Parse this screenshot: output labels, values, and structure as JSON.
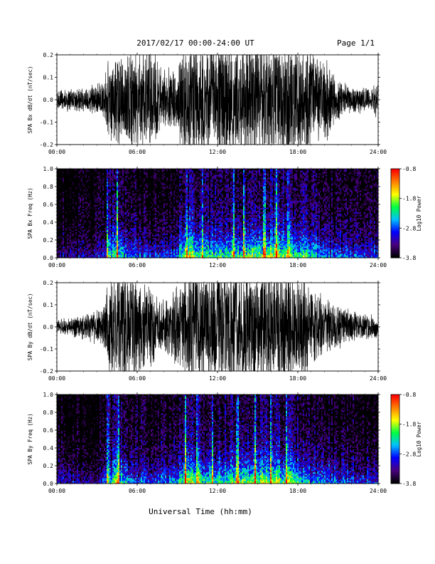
{
  "header": {
    "date_range": "2017/02/17  00:00-24:00 UT",
    "page": "Page 1/1"
  },
  "footer": {
    "xlabel": "Universal Time (hh:mm)"
  },
  "chart_data": [
    {
      "type": "line",
      "ylabel": "SPA Bx dB/dt (nT/sec)",
      "xlim": [
        0,
        24
      ],
      "ylim": [
        -0.2,
        0.2
      ],
      "x_ticks": [
        "00:00",
        "06:00",
        "12:00",
        "18:00",
        "24:00"
      ],
      "y_ticks": [
        "-0.2",
        "-0.1",
        "0.0",
        "0.1",
        "0.2"
      ],
      "envelope": {
        "hours": [
          0,
          1,
          2,
          3,
          3.5,
          3.9,
          4.2,
          4.8,
          5.2,
          6,
          7,
          8,
          9,
          9.3,
          9.5,
          10,
          11,
          12,
          13,
          14,
          15,
          16,
          17,
          18,
          18.5,
          19,
          19.5,
          20,
          20.5,
          21,
          22,
          23,
          23.6,
          24
        ],
        "amplitude": [
          0.05,
          0.06,
          0.06,
          0.08,
          0.09,
          0.22,
          0.22,
          0.25,
          0.25,
          0.25,
          0.25,
          0.15,
          0.14,
          0.25,
          0.3,
          0.3,
          0.3,
          0.3,
          0.3,
          0.3,
          0.3,
          0.3,
          0.3,
          0.3,
          0.3,
          0.25,
          0.2,
          0.22,
          0.15,
          0.1,
          0.07,
          0.06,
          0.06,
          0.1
        ]
      }
    },
    {
      "type": "heatmap",
      "ylabel": "SPA Bx Freq (Hz)",
      "xlim": [
        0,
        24
      ],
      "ylim": [
        0,
        1.0
      ],
      "x_ticks": [
        "00:00",
        "06:00",
        "12:00",
        "18:00",
        "24:00"
      ],
      "y_ticks": [
        "0.0",
        "0.2",
        "0.4",
        "0.6",
        "0.8",
        "1.0"
      ],
      "colorbar": {
        "label": "Log10 Power",
        "min": -3.8,
        "max": -0.8,
        "ticks": [
          "-0.8",
          "-1.8",
          "-2.8",
          "-3.8"
        ]
      },
      "colormap": [
        "#000000",
        "#4b0082",
        "#0000ff",
        "#00c0ff",
        "#00ff40",
        "#ffff00",
        "#ff8000",
        "#ff0000"
      ],
      "activity": {
        "hours": [
          0,
          1,
          2,
          3,
          3.5,
          4,
          4.5,
          5,
          6,
          7,
          8,
          9,
          9.5,
          10,
          11,
          12,
          13,
          14,
          15,
          16,
          17,
          18,
          19,
          20,
          21,
          22,
          23,
          24
        ],
        "level": [
          0.3,
          0.3,
          0.28,
          0.3,
          0.35,
          0.55,
          0.65,
          0.55,
          0.4,
          0.42,
          0.38,
          0.45,
          0.7,
          0.75,
          0.6,
          0.6,
          0.62,
          0.68,
          0.7,
          0.72,
          0.7,
          0.65,
          0.55,
          0.5,
          0.45,
          0.4,
          0.38,
          0.38
        ]
      },
      "streak_hours": [
        3.8,
        4.5,
        9.7,
        10.9,
        13.2,
        14.0,
        15.5,
        16.4,
        17.3
      ],
      "seed": 11
    },
    {
      "type": "line",
      "ylabel": "SPA By dB/dt (nT/sec)",
      "xlim": [
        0,
        24
      ],
      "ylim": [
        -0.2,
        0.2
      ],
      "x_ticks": [
        "00:00",
        "06:00",
        "12:00",
        "18:00",
        "24:00"
      ],
      "y_ticks": [
        "-0.2",
        "-0.1",
        "0.0",
        "0.1",
        "0.2"
      ],
      "envelope": {
        "hours": [
          0,
          1,
          2,
          3,
          3.5,
          3.9,
          4.5,
          5,
          6,
          7,
          8,
          9,
          9.5,
          10,
          11,
          12,
          13,
          14,
          15,
          16,
          17,
          18,
          19,
          20,
          21,
          22,
          23,
          24
        ],
        "amplitude": [
          0.04,
          0.05,
          0.06,
          0.09,
          0.12,
          0.25,
          0.3,
          0.3,
          0.25,
          0.2,
          0.14,
          0.2,
          0.25,
          0.3,
          0.3,
          0.3,
          0.3,
          0.3,
          0.3,
          0.3,
          0.3,
          0.27,
          0.2,
          0.15,
          0.11,
          0.08,
          0.06,
          0.06
        ]
      }
    },
    {
      "type": "heatmap",
      "ylabel": "SPA By Freq (Hz)",
      "xlim": [
        0,
        24
      ],
      "ylim": [
        0,
        1.0
      ],
      "x_ticks": [
        "00:00",
        "06:00",
        "12:00",
        "18:00",
        "24:00"
      ],
      "y_ticks": [
        "0.0",
        "0.2",
        "0.4",
        "0.6",
        "0.8",
        "1.0"
      ],
      "colorbar": {
        "label": "Log10 Power",
        "min": -3.8,
        "max": -0.8,
        "ticks": [
          "-0.8",
          "-1.8",
          "-2.8",
          "-3.8"
        ]
      },
      "colormap": [
        "#000000",
        "#4b0082",
        "#0000ff",
        "#00c0ff",
        "#00ff40",
        "#ffff00",
        "#ff8000",
        "#ff0000"
      ],
      "activity": {
        "hours": [
          0,
          1,
          2,
          3,
          3.5,
          4,
          4.5,
          5,
          6,
          7,
          8,
          9,
          9.5,
          10,
          11,
          12,
          13,
          14,
          15,
          16,
          17,
          18,
          19,
          20,
          21,
          22,
          23,
          24
        ],
        "level": [
          0.3,
          0.32,
          0.3,
          0.33,
          0.38,
          0.58,
          0.68,
          0.55,
          0.42,
          0.4,
          0.42,
          0.5,
          0.72,
          0.76,
          0.62,
          0.62,
          0.64,
          0.7,
          0.72,
          0.7,
          0.68,
          0.62,
          0.52,
          0.48,
          0.44,
          0.42,
          0.4,
          0.4
        ]
      },
      "streak_hours": [
        3.8,
        4.6,
        9.6,
        10.5,
        11.6,
        13.5,
        14.8,
        16.0,
        17.2
      ],
      "seed": 29
    }
  ]
}
